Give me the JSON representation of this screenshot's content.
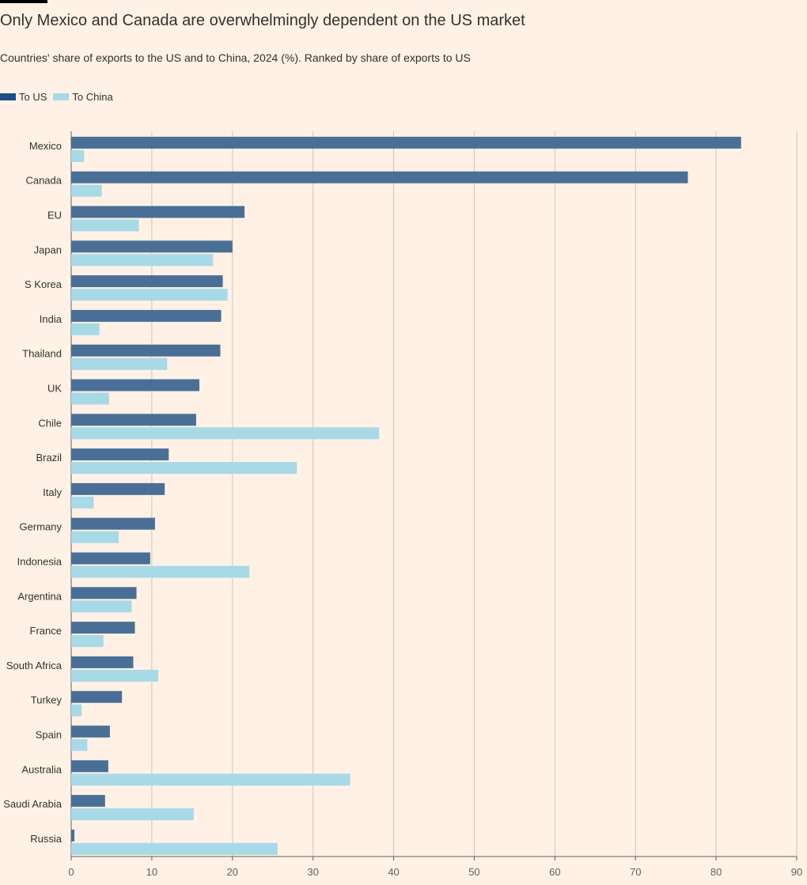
{
  "title": "Only Mexico and Canada are overwhelmingly dependent on the US market",
  "subtitle": "Countries' share of exports to the US and to China, 2024 (%). Ranked by share of exports to US",
  "colors": {
    "background": "#FFF1E5",
    "to_us": "#4A6F97",
    "to_china": "#A8D9E7",
    "legend_us": "#1D4E89",
    "legend_china": "#A8D9E7"
  },
  "chart_data": {
    "type": "bar",
    "orientation": "horizontal",
    "title": "Only Mexico and Canada are overwhelmingly dependent on the US market",
    "subtitle": "Countries' share of exports to the US and to China, 2024 (%). Ranked by share of exports to US",
    "categories": [
      "Mexico",
      "Canada",
      "EU",
      "Japan",
      "S Korea",
      "India",
      "Thailand",
      "UK",
      "Chile",
      "Brazil",
      "Italy",
      "Germany",
      "Indonesia",
      "Argentina",
      "France",
      "South Africa",
      "Turkey",
      "Spain",
      "Australia",
      "Saudi Arabia",
      "Russia"
    ],
    "series": [
      {
        "name": "To US",
        "values": [
          83.1,
          76.5,
          21.5,
          20.0,
          18.8,
          18.6,
          18.5,
          15.9,
          15.5,
          12.1,
          11.6,
          10.4,
          9.8,
          8.1,
          7.9,
          7.7,
          6.3,
          4.8,
          4.6,
          4.2,
          0.4
        ]
      },
      {
        "name": "To China",
        "values": [
          1.6,
          3.8,
          8.4,
          17.6,
          19.4,
          3.5,
          11.9,
          4.7,
          38.2,
          28.0,
          2.8,
          5.9,
          22.1,
          7.5,
          4.0,
          10.8,
          1.3,
          2.0,
          34.6,
          15.2,
          25.6
        ]
      }
    ],
    "xlim": [
      0,
      90
    ],
    "xticks": [
      0,
      10,
      20,
      30,
      40,
      50,
      60,
      70,
      80,
      90
    ],
    "xlabel": "",
    "ylabel": "",
    "grid": "vertical",
    "legend": "top-left"
  }
}
